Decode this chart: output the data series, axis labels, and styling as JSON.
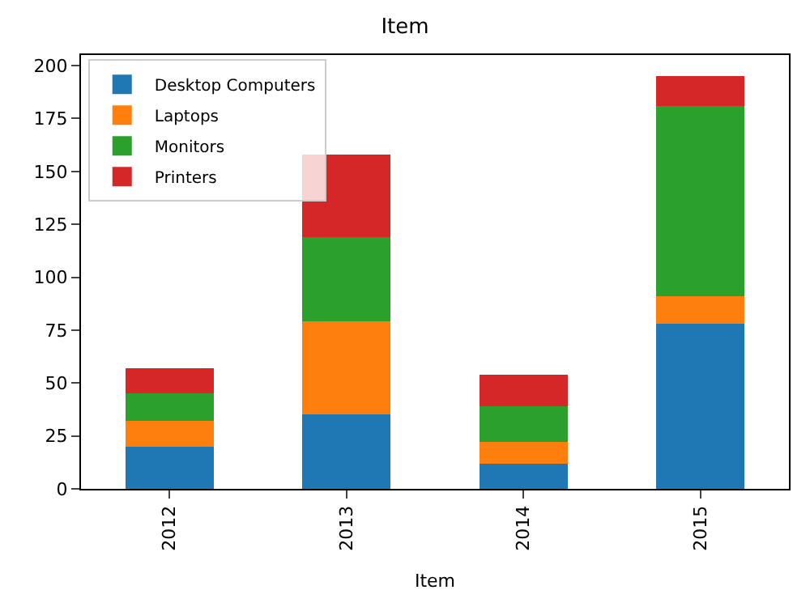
{
  "chart_data": {
    "type": "bar",
    "title": "Item",
    "xlabel": "Item",
    "stacked": true,
    "categories": [
      "2012",
      "2013",
      "2014",
      "2015"
    ],
    "series": [
      {
        "name": "Desktop Computers",
        "color": "#1f77b4",
        "values": [
          20,
          35,
          12,
          78
        ]
      },
      {
        "name": "Laptops",
        "color": "#ff7f0e",
        "values": [
          12,
          44,
          10,
          13
        ]
      },
      {
        "name": "Monitors",
        "color": "#2ca02c",
        "values": [
          13,
          40,
          17,
          90
        ]
      },
      {
        "name": "Printers",
        "color": "#d62728",
        "values": [
          12,
          39,
          15,
          14
        ]
      }
    ],
    "ylim": [
      0,
      205
    ],
    "yticks": [
      0,
      25,
      50,
      75,
      100,
      125,
      150,
      175,
      200
    ],
    "grid": false,
    "legend": "top left"
  }
}
